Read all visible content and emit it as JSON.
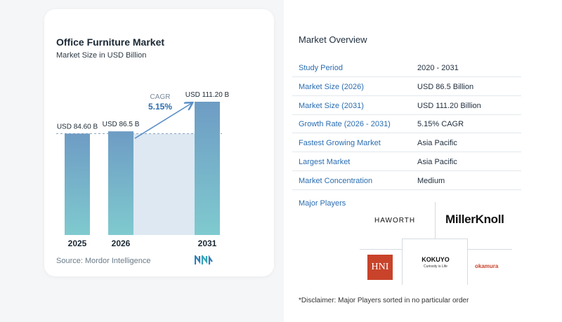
{
  "chart": {
    "title": "Office Furniture Market",
    "subtitle": "Market Size in USD Billion",
    "source": "Source: Mordor Intelligence",
    "cagr_label": "CAGR",
    "cagr_value": "5.15%"
  },
  "chart_data": {
    "type": "bar",
    "title": "Office Furniture Market",
    "subtitle": "Market Size in USD Billion",
    "categories": [
      "2025",
      "2026",
      "2031"
    ],
    "values": [
      84.6,
      86.5,
      111.2
    ],
    "data_labels": [
      "USD 84.60 B",
      "USD 86.5 B",
      "USD 111.20 B"
    ],
    "ylim": [
      0,
      111.2
    ],
    "annotations": [
      "CAGR",
      "5.15%"
    ],
    "colors": {
      "bar_top": "#6e9cc4",
      "bar_bottom": "#7fcacf",
      "shade": "#dde8f2",
      "arrow": "#5a8fc7"
    }
  },
  "overview": {
    "title": "Market Overview",
    "rows": [
      {
        "key": "Study Period",
        "value": "2020 - 2031"
      },
      {
        "key": "Market Size (2026)",
        "value": "USD 86.5 Billion"
      },
      {
        "key": "Market Size (2031)",
        "value": "USD 111.20 Billion"
      },
      {
        "key": "Growth Rate (2026 - 2031)",
        "value": "5.15% CAGR"
      },
      {
        "key": "Fastest Growing Market",
        "value": "Asia Pacific"
      },
      {
        "key": "Largest Market",
        "value": "Asia Pacific"
      },
      {
        "key": "Market Concentration",
        "value": "Medium"
      }
    ],
    "major_players_title": "Major Players",
    "players": {
      "haworth": "HAWORTH",
      "millerknoll": "MillerKnoll",
      "hni": "HNI",
      "kokuyo": "KOKUYO",
      "kokuyo_tagline": "Curiosity is Life",
      "okamura": "okamura"
    },
    "disclaimer": "*Disclaimer: Major Players sorted in no particular order"
  }
}
